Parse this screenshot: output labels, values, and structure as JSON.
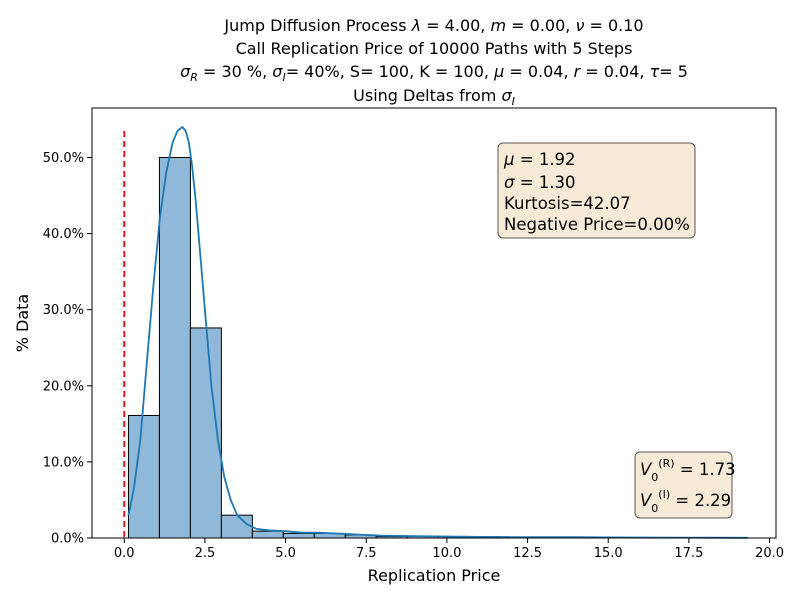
{
  "chart_data": {
    "type": "bar",
    "title_lines": [
      "Jump Diffusion Process  λ =  4.00, m =  0.00, ν =  0.10",
      "Call Replication Price of 10000 Paths with 5 Steps",
      "σR = 30 %, σI= 40%, S= 100, K = 100, μ = 0.04, r = 0.04, τ= 5",
      "Using Deltas from σI"
    ],
    "xlabel": "Replication Price",
    "ylabel": "% Data",
    "xlim": [
      -1.0,
      20.2
    ],
    "ylim": [
      0,
      0.565
    ],
    "xticks": [
      0.0,
      2.5,
      5.0,
      7.5,
      10.0,
      12.5,
      15.0,
      17.5,
      20.0
    ],
    "xtick_labels": [
      "0.0",
      "2.5",
      "5.0",
      "7.5",
      "10.0",
      "12.5",
      "15.0",
      "17.5",
      "20.0"
    ],
    "yticks": [
      0.0,
      0.1,
      0.2,
      0.3,
      0.4,
      0.5
    ],
    "ytick_labels": [
      "0.0%",
      "10.0%",
      "20.0%",
      "30.0%",
      "40.0%",
      "50.0%"
    ],
    "bin_edges": [
      0.13,
      1.09,
      2.05,
      3.01,
      3.97,
      4.93,
      5.89,
      6.85,
      7.81,
      8.77,
      9.73,
      10.69,
      11.65,
      12.61,
      13.57,
      14.53,
      15.49,
      16.45,
      17.41,
      18.37,
      19.33
    ],
    "values": [
      0.161,
      0.5,
      0.276,
      0.03,
      0.009,
      0.006,
      0.006,
      0.004,
      0.002,
      0.002,
      0.002,
      0.0015,
      0.001,
      0.001,
      0.001,
      0.0008,
      0.0005,
      0.0005,
      0.0005,
      0.0003
    ],
    "kde": {
      "x": [
        0.13,
        0.3,
        0.5,
        0.7,
        0.9,
        1.1,
        1.3,
        1.5,
        1.65,
        1.8,
        1.9,
        2.0,
        2.1,
        2.2,
        2.3,
        2.5,
        2.7,
        2.9,
        3.1,
        3.3,
        3.5,
        3.8,
        4.1,
        4.5,
        5.0,
        5.5,
        6.0,
        6.5,
        7.0,
        7.5,
        8.0,
        9.0,
        10.0,
        11.0,
        12.0,
        13.0,
        14.0,
        15.0,
        16.0,
        17.0,
        18.0,
        19.33
      ],
      "y": [
        0.03,
        0.065,
        0.13,
        0.23,
        0.33,
        0.42,
        0.48,
        0.52,
        0.535,
        0.54,
        0.535,
        0.52,
        0.49,
        0.45,
        0.4,
        0.3,
        0.2,
        0.13,
        0.08,
        0.05,
        0.03,
        0.018,
        0.012,
        0.01,
        0.009,
        0.007,
        0.007,
        0.006,
        0.005,
        0.004,
        0.003,
        0.0025,
        0.002,
        0.0015,
        0.0012,
        0.001,
        0.001,
        0.0008,
        0.0006,
        0.0005,
        0.0004,
        0.0003
      ]
    },
    "vline": {
      "x": 0.0,
      "color": "#ff0000",
      "style": "dashed"
    },
    "stats_box": [
      "μ = 1.92",
      "σ = 1.30",
      "Kurtosis=42.07",
      "Negative Price=0.00%"
    ],
    "value_box": [
      "V0(R) = 1.73",
      "V0(I) = 2.29"
    ],
    "colors": {
      "bar_fill": "#8fb8d9",
      "bar_edge": "#000000",
      "kde_line": "#1f77b4",
      "box_fill": "#f7ebd7",
      "box_edge": "#555555"
    },
    "grid": false
  }
}
